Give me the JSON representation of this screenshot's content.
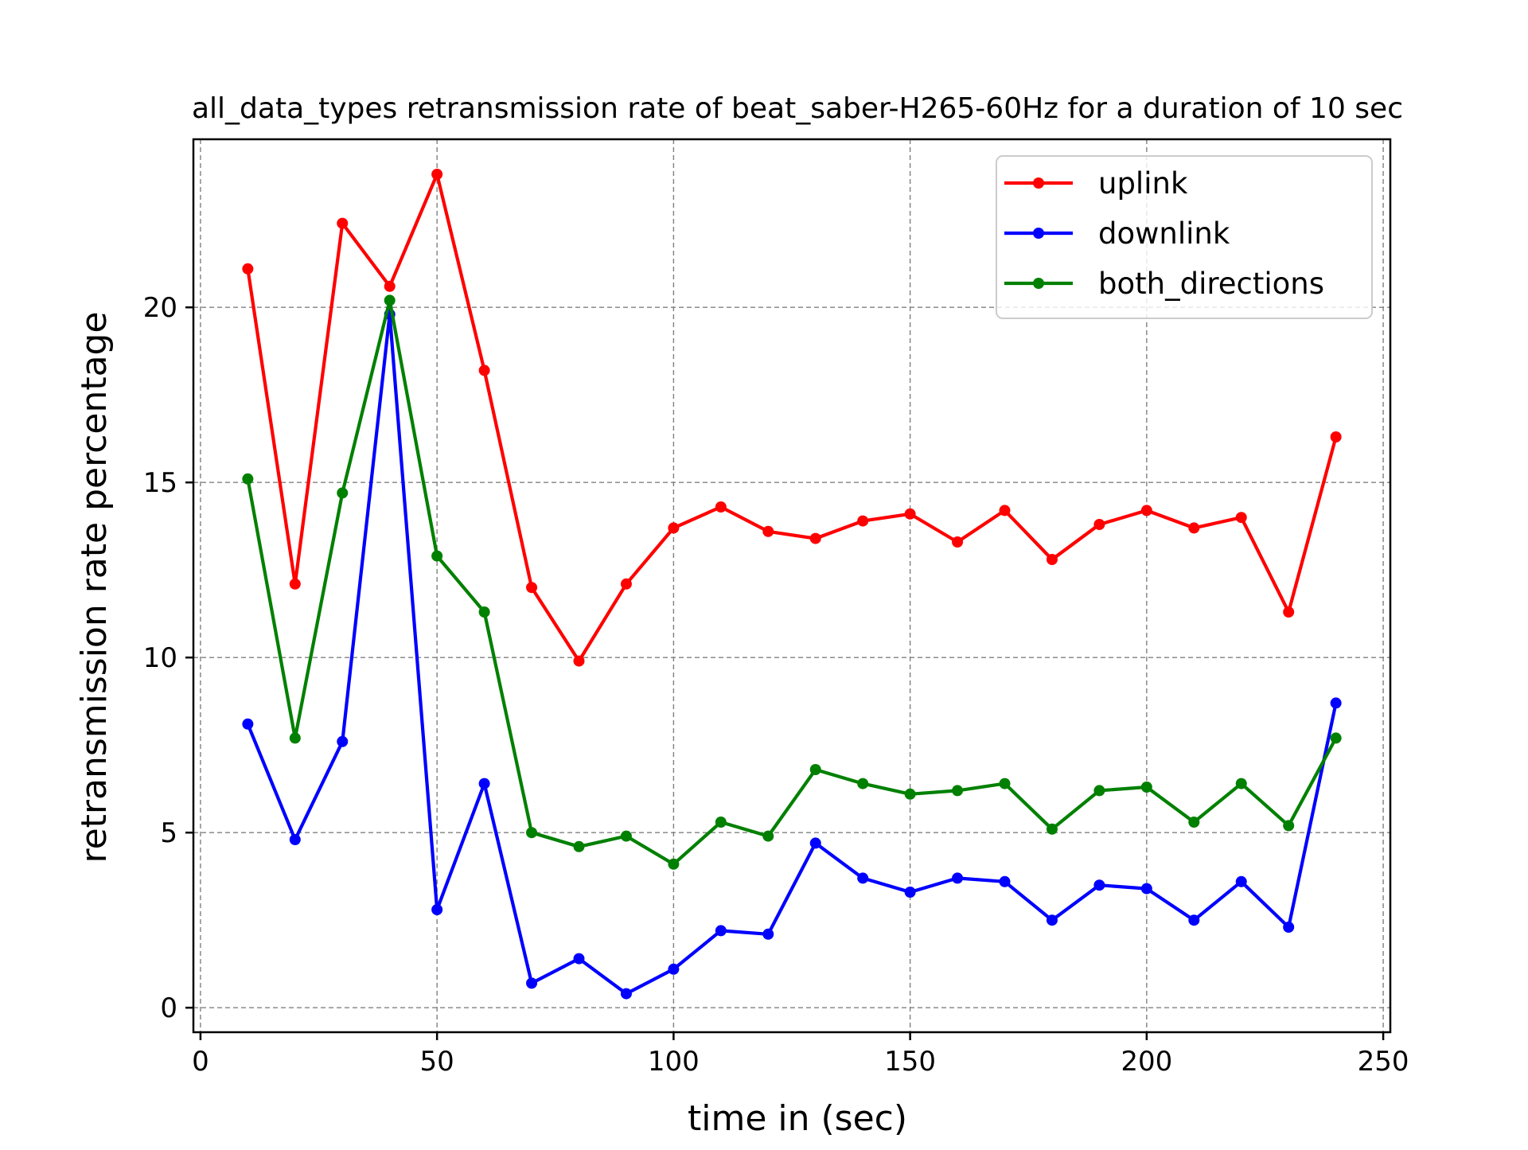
{
  "chart_data": {
    "type": "line",
    "title": "all_data_types retransmission rate of beat_saber-H265-60Hz for a duration of 10 sec",
    "xlabel": "time in (sec)",
    "ylabel": "retransmission rate percentage",
    "xlim": [
      -1.5,
      251.5
    ],
    "ylim": [
      -0.7,
      24.8
    ],
    "xticks": [
      0,
      50,
      100,
      150,
      200,
      250
    ],
    "yticks": [
      0,
      5,
      10,
      15,
      20
    ],
    "grid": true,
    "legend_position": "top-right",
    "x": [
      10,
      20,
      30,
      40,
      50,
      60,
      70,
      80,
      90,
      100,
      110,
      120,
      130,
      140,
      150,
      160,
      170,
      180,
      190,
      200,
      210,
      220,
      230,
      240
    ],
    "series": [
      {
        "name": "uplink",
        "color": "#ff0000",
        "values": [
          21.1,
          12.1,
          22.4,
          20.6,
          23.8,
          18.2,
          12.0,
          9.9,
          12.1,
          13.7,
          14.3,
          13.6,
          13.4,
          13.9,
          14.1,
          13.3,
          14.2,
          12.8,
          13.8,
          14.2,
          13.7,
          14.0,
          11.3,
          16.3
        ]
      },
      {
        "name": "downlink",
        "color": "#0000ff",
        "values": [
          8.1,
          4.8,
          7.6,
          19.8,
          2.8,
          6.4,
          0.7,
          1.4,
          0.4,
          1.1,
          2.2,
          2.1,
          4.7,
          3.7,
          3.3,
          3.7,
          3.6,
          2.5,
          3.5,
          3.4,
          2.5,
          3.6,
          2.3,
          8.7
        ]
      },
      {
        "name": "both_directions",
        "color": "#008000",
        "values": [
          15.1,
          7.7,
          14.7,
          20.2,
          12.9,
          11.3,
          5.0,
          4.6,
          4.9,
          4.1,
          5.3,
          4.9,
          6.8,
          6.4,
          6.1,
          6.2,
          6.4,
          5.1,
          6.2,
          6.3,
          5.3,
          6.4,
          5.2,
          7.7
        ]
      }
    ]
  }
}
